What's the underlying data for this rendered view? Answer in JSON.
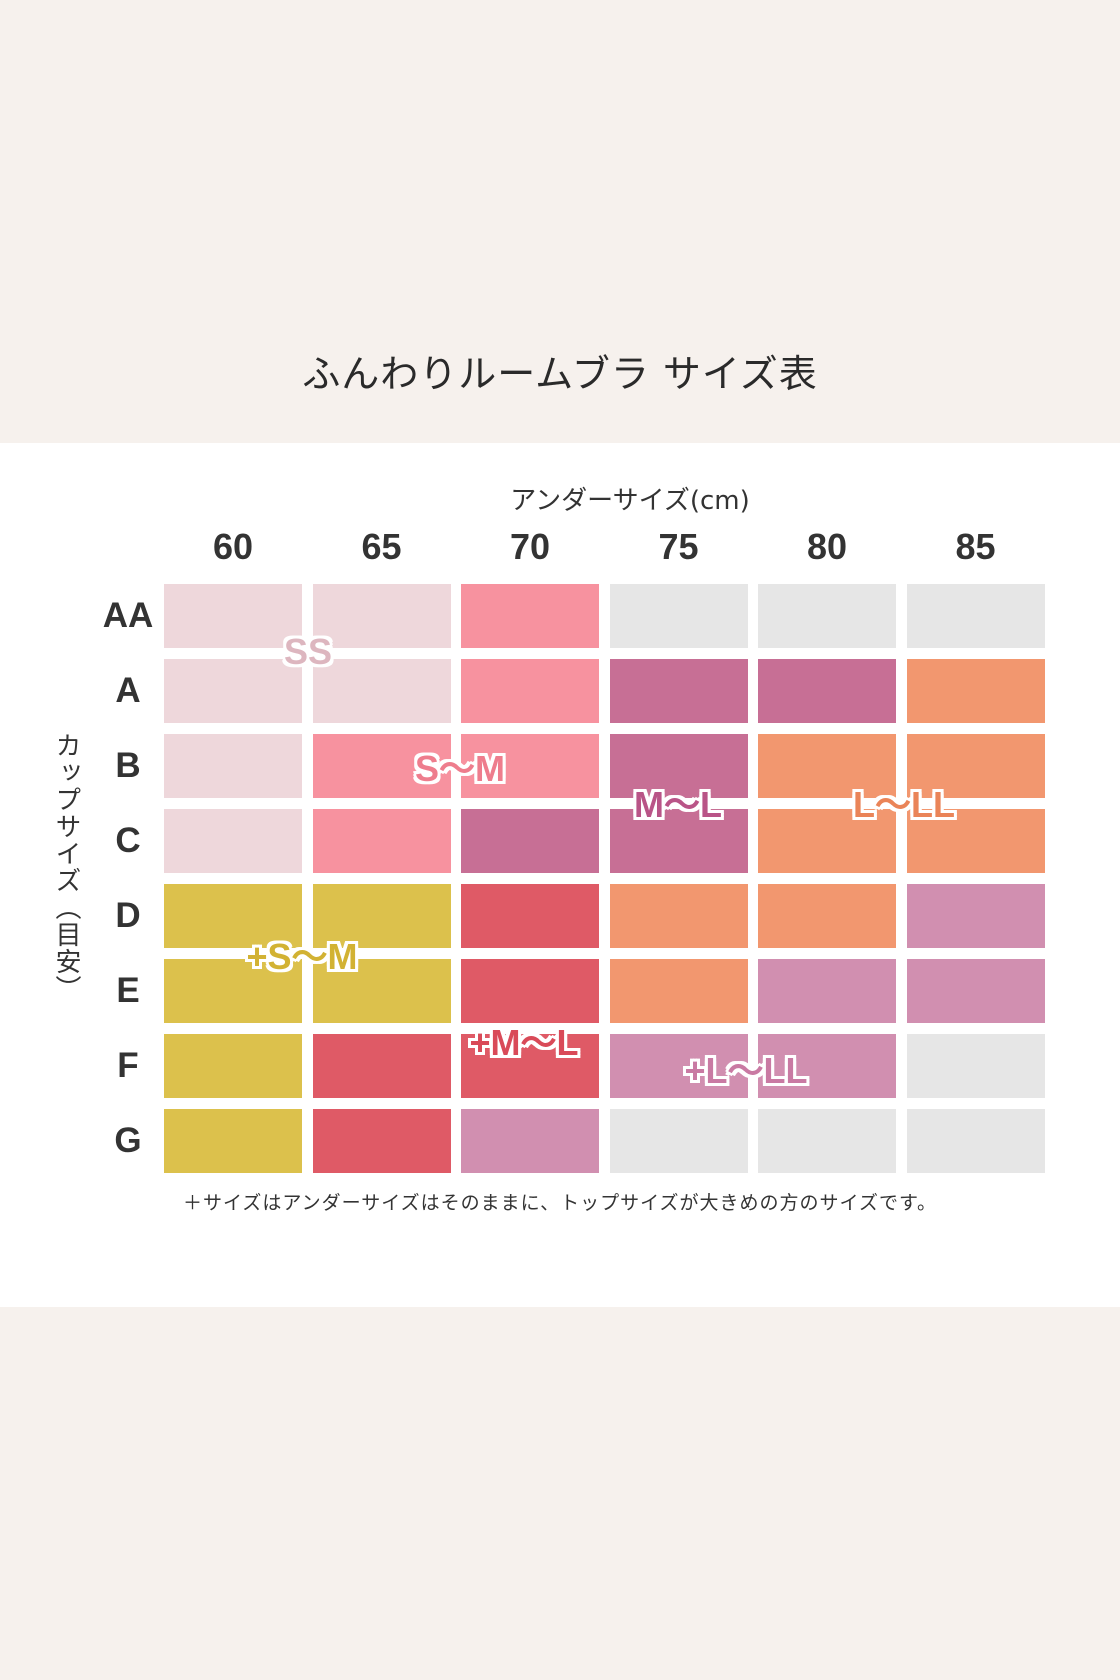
{
  "title": "ふんわりルームブラ サイズ表",
  "footnote": "＋サイズはアンダーサイズはそのままに、トップサイズが大きめの方のサイズです。",
  "colors": {
    "SS": "#eed7db",
    "S~M": "#f7929f",
    "M~L": "#c76f95",
    "L~LL": "#f2976f",
    "+S~M": "#dcc14c",
    "+M~L": "#df5a66",
    "+L~LL": "#d18fb0",
    "none": "#e6e6e6"
  },
  "chart_data": {
    "type": "table",
    "xlabel": "アンダーサイズ(cm)",
    "ylabel": "カップサイズ（目安）",
    "columns": [
      "60",
      "65",
      "70",
      "75",
      "80",
      "85"
    ],
    "rows": [
      "AA",
      "A",
      "B",
      "C",
      "D",
      "E",
      "F",
      "G"
    ],
    "cells": [
      [
        "SS",
        "SS",
        "S~M",
        "none",
        "none",
        "none"
      ],
      [
        "SS",
        "SS",
        "S~M",
        "M~L",
        "M~L",
        "L~LL"
      ],
      [
        "SS",
        "S~M",
        "S~M",
        "M~L",
        "L~LL",
        "L~LL"
      ],
      [
        "SS",
        "S~M",
        "M~L",
        "M~L",
        "L~LL",
        "L~LL"
      ],
      [
        "+S~M",
        "+S~M",
        "+M~L",
        "L~LL",
        "L~LL",
        "+L~LL"
      ],
      [
        "+S~M",
        "+S~M",
        "+M~L",
        "L~LL",
        "+L~LL",
        "+L~LL"
      ],
      [
        "+S~M",
        "+M~L",
        "+M~L",
        "+L~LL",
        "+L~LL",
        "none"
      ],
      [
        "+S~M",
        "+M~L",
        "+L~LL",
        "none",
        "none",
        "none"
      ]
    ],
    "group_labels": [
      {
        "key": "SS",
        "text": "SS"
      },
      {
        "key": "S~M",
        "text": "S〜M"
      },
      {
        "key": "M~L",
        "text": "M〜L"
      },
      {
        "key": "L~LL",
        "text": "L〜LL"
      },
      {
        "key": "+S~M",
        "text": "+S〜M"
      },
      {
        "key": "+M~L",
        "text": "+M〜L"
      },
      {
        "key": "+L~LL",
        "text": "+L〜LL"
      }
    ]
  }
}
